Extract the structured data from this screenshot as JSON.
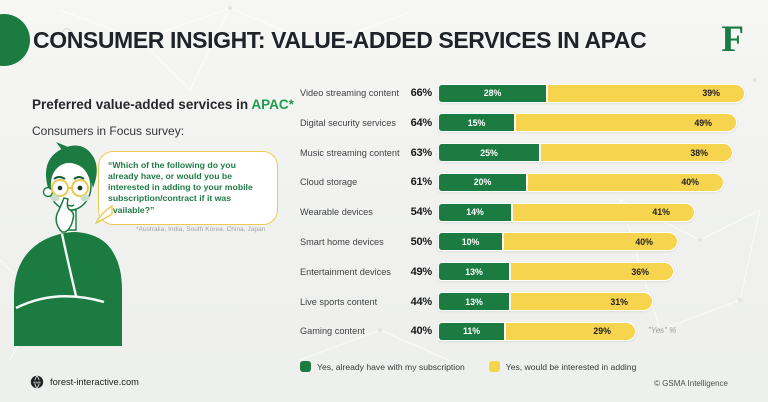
{
  "header": {
    "title": "CONSUMER INSIGHT: VALUE-ADDED SERVICES IN APAC",
    "logo_letter": "F"
  },
  "left_panel": {
    "heading_prefix": "Preferred value-added services in ",
    "heading_highlight": "APAC*",
    "subheading": "Consumers in Focus survey:",
    "quote": "“Which of the following do you already have, or would you be interested in adding to your mobile subscription/contract if it was available?”",
    "footnote": "*Australia, India, South Korea, China, Japan"
  },
  "chart_data": {
    "type": "bar",
    "orientation": "horizontal",
    "title": "Preferred value-added services in APAC",
    "categories": [
      "Video streaming content",
      "Digital security services",
      "Music streaming content",
      "Cloud storage",
      "Wearable devices",
      "Smart home devices",
      "Entertainment devices",
      "Live sports content",
      "Gaming content"
    ],
    "totals": [
      66,
      64,
      63,
      61,
      54,
      50,
      49,
      44,
      40
    ],
    "series": [
      {
        "name": "Yes, already have with my subscription",
        "color": "#1b7b40",
        "values": [
          28,
          15,
          25,
          20,
          14,
          10,
          13,
          13,
          11
        ]
      },
      {
        "name": "Yes, would be interested in adding",
        "color": "#f6d44e",
        "values": [
          39,
          49,
          38,
          40,
          41,
          40,
          36,
          31,
          29
        ]
      }
    ],
    "value_unit": "%",
    "note": "\"Yes\" %",
    "legend_position": "bottom",
    "grid": false
  },
  "footer": {
    "website": "forest-interactive.com",
    "credit": "© GSMA Intelligence"
  },
  "colors": {
    "brand_green": "#1b7b40",
    "accent_yellow": "#f6d44e",
    "highlight_green": "#1e9b4e",
    "title_dark": "#1f2227",
    "background": "#f0f1ef"
  }
}
